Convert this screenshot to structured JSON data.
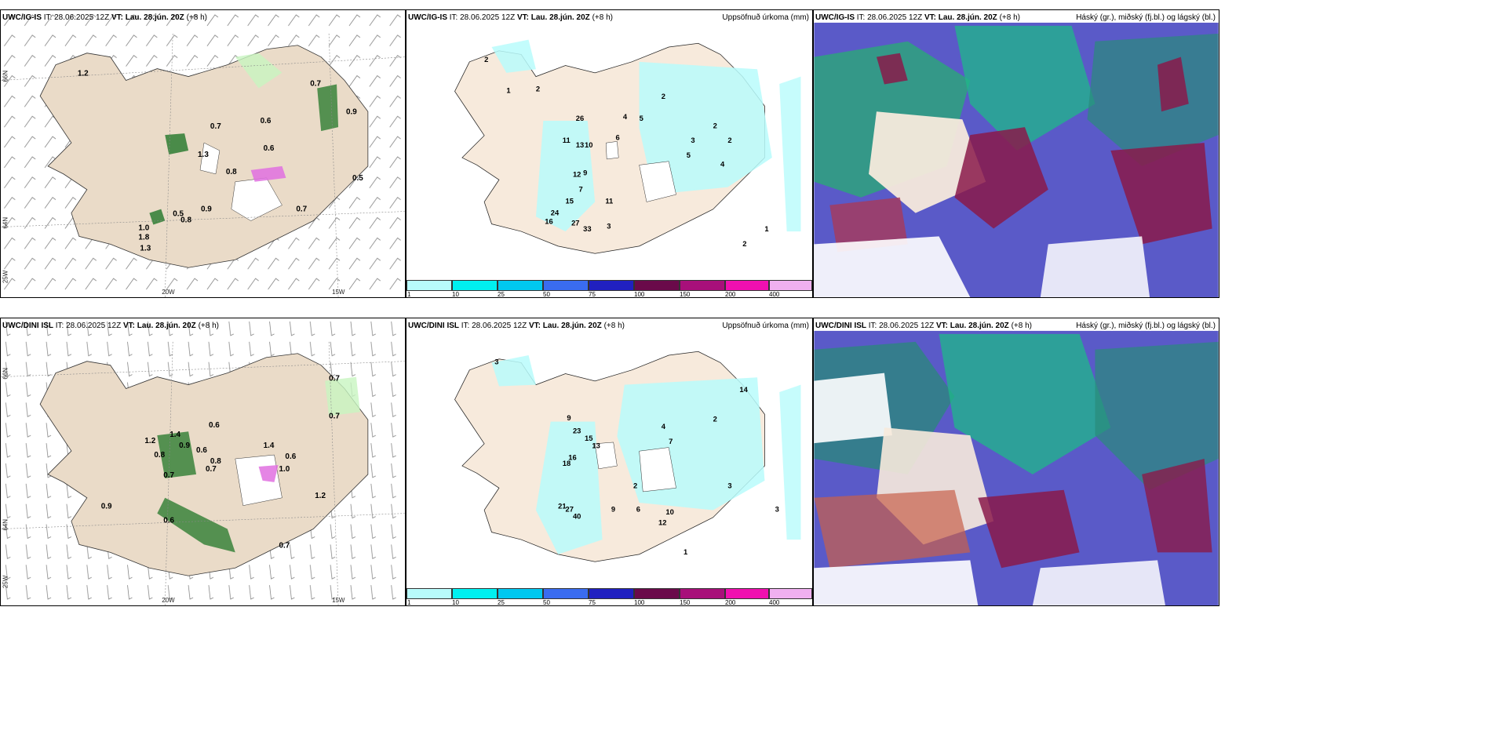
{
  "panels": [
    {
      "id": "p1",
      "source": "UWC/IG-IS",
      "it_label": "IT:",
      "it": "28.06.2025 12Z",
      "vt_label": "VT:",
      "vt": "Lau. 28.jún. 20Z",
      "lead": "(+8 h)",
      "right_title": ""
    },
    {
      "id": "p2",
      "source": "UWC/IG-IS",
      "it_label": "IT:",
      "it": "28.06.2025 12Z",
      "vt_label": "VT:",
      "vt": "Lau. 28.jún. 20Z",
      "lead": "(+8 h)",
      "right_title": "Uppsöfnuð úrkoma (mm)"
    },
    {
      "id": "p3",
      "source": "UWC/IG-IS",
      "it_label": "IT:",
      "it": "28.06.2025 12Z",
      "vt_label": "VT:",
      "vt": "Lau. 28.jún. 20Z",
      "lead": "(+8 h)",
      "right_title": "Háský (gr.), miðský (fj.bl.) og lágský (bl.)"
    },
    {
      "id": "p4",
      "source": "UWC/DINI ISL",
      "it_label": "IT:",
      "it": "28.06.2025 12Z",
      "vt_label": "VT:",
      "vt": "Lau. 28.jún. 20Z",
      "lead": "(+8 h)",
      "right_title": ""
    },
    {
      "id": "p5",
      "source": "UWC/DINI ISL",
      "it_label": "IT:",
      "it": "28.06.2025 12Z",
      "vt_label": "VT:",
      "vt": "Lau. 28.jún. 20Z",
      "lead": "(+8 h)",
      "right_title": "Uppsöfnuð úrkoma (mm)"
    },
    {
      "id": "p6",
      "source": "UWC/DINI ISL",
      "it_label": "IT:",
      "it": "28.06.2025 12Z",
      "vt_label": "VT:",
      "vt": "Lau. 28.jún. 20Z",
      "lead": "(+8 h)",
      "right_title": "Háský (gr.), miðský (fj.bl.) og lágský (bl.)"
    }
  ],
  "axes": {
    "lat_66": "66N",
    "lat_64": "64N",
    "lon_20": "20W",
    "lon_15": "15W",
    "lon_25": "25W"
  },
  "colorbar": {
    "ticks": [
      "1",
      "10",
      "25",
      "50",
      "75",
      "100",
      "150",
      "200",
      "400"
    ],
    "colors": [
      "#b8fbfb",
      "#00f0f0",
      "#00c8f0",
      "#3a6cf0",
      "#2020c0",
      "#6a0a4a",
      "#a8107a",
      "#f010b0",
      "#f0b0f0"
    ]
  },
  "rain_labels_top": [
    "0.7",
    "0.6",
    "0.6",
    "1.3",
    "0.5",
    "0.8",
    "0.9",
    "0.7",
    "0.5",
    "1.8",
    "1.3",
    "1.0",
    "0.7",
    "0.9",
    "0.8",
    "1.2"
  ],
  "rain_labels_bottom": [
    "0.6",
    "1.4",
    "0.9",
    "0.8",
    "0.6",
    "0.7",
    "0.8",
    "1.2",
    "0.6",
    "0.7",
    "1.4",
    "0.7",
    "1.2",
    "0.9",
    "0.6",
    "0.7",
    "1.0",
    "0.7"
  ],
  "precip_labels_top": [
    "2",
    "2",
    "1",
    "26",
    "11",
    "13",
    "10",
    "12",
    "9",
    "7",
    "15",
    "27",
    "16",
    "24",
    "33",
    "11",
    "3",
    "2",
    "4",
    "5",
    "6",
    "3",
    "2",
    "5",
    "4",
    "2",
    "2",
    "1"
  ],
  "precip_labels_bottom": [
    "3",
    "9",
    "23",
    "15",
    "13",
    "16",
    "18",
    "21",
    "40",
    "27",
    "9",
    "2",
    "4",
    "7",
    "6",
    "14",
    "3",
    "2",
    "1",
    "12",
    "10",
    "3"
  ]
}
